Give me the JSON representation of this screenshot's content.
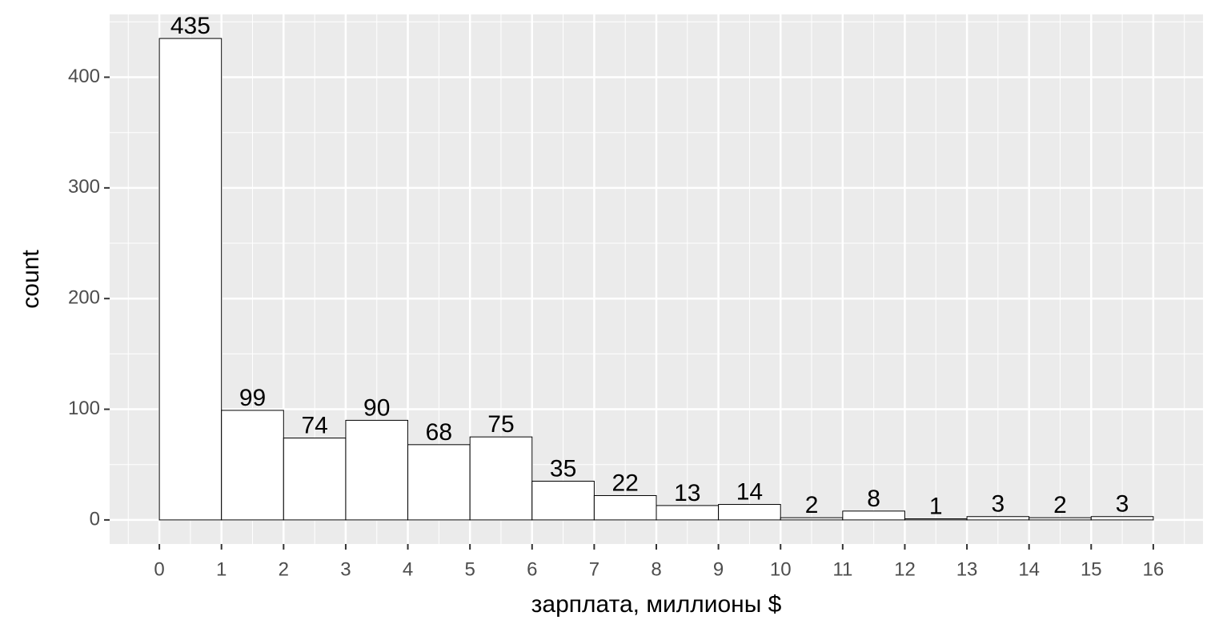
{
  "chart_data": {
    "type": "histogram",
    "x_label": "зарплата, миллионы $",
    "y_label": "count",
    "bins": [
      0,
      1,
      2,
      3,
      4,
      5,
      6,
      7,
      8,
      9,
      10,
      11,
      12,
      13,
      14,
      15,
      16
    ],
    "counts": [
      435,
      99,
      74,
      90,
      68,
      75,
      35,
      22,
      13,
      14,
      2,
      8,
      1,
      3,
      2,
      3
    ],
    "fill": "#ffffff",
    "edge_color": "#000000",
    "xlim": [
      -0.8,
      16.8
    ],
    "ylim": [
      -21.75,
      456.75
    ],
    "xticks": [
      0,
      1,
      2,
      3,
      4,
      5,
      6,
      7,
      8,
      9,
      10,
      11,
      12,
      13,
      14,
      15,
      16
    ],
    "yticks": [
      0,
      100,
      200,
      300,
      400
    ],
    "grid": true
  }
}
